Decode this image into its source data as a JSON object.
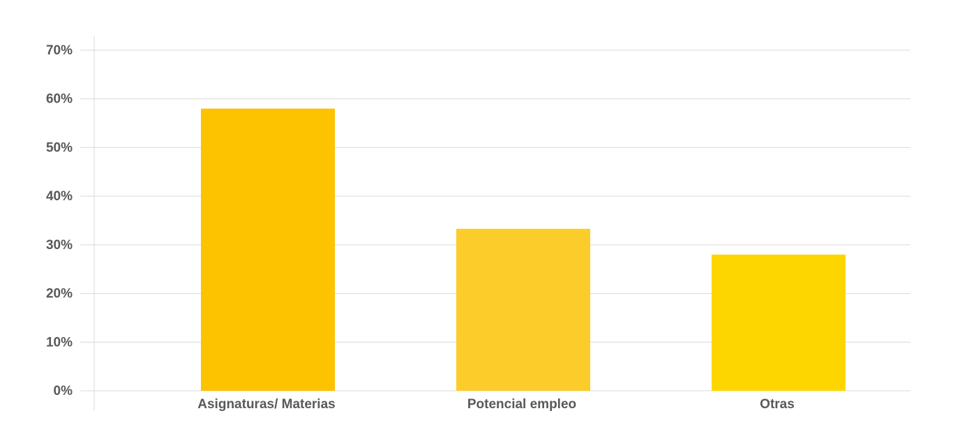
{
  "chart_data": {
    "type": "bar",
    "categories": [
      "Asignaturas/ Materias",
      "Potencial empleo",
      "Otras"
    ],
    "values": [
      58,
      33.3,
      28
    ],
    "colors": [
      "#fdc200",
      "#fccd2a",
      "#fdd600"
    ],
    "ylim": [
      0,
      70
    ],
    "yticks": [
      {
        "value": 0,
        "label": "0%"
      },
      {
        "value": 10,
        "label": "10%"
      },
      {
        "value": 20,
        "label": "20%"
      },
      {
        "value": 30,
        "label": "30%"
      },
      {
        "value": 40,
        "label": "40%"
      },
      {
        "value": 50,
        "label": "50%"
      },
      {
        "value": 60,
        "label": "60%"
      },
      {
        "value": 70,
        "label": "70%"
      }
    ],
    "grid": true
  }
}
